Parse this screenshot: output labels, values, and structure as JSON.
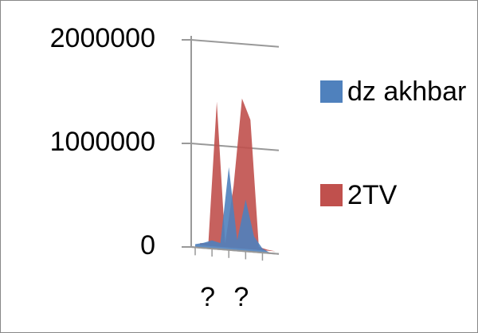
{
  "chart_data": {
    "type": "area3d",
    "categories": [
      null,
      "?",
      null,
      null,
      null,
      "?",
      null,
      null,
      null,
      null
    ],
    "series": [
      {
        "name": "dz akhbar",
        "color": "#4f81bd",
        "values": [
          30000,
          50000,
          80000,
          60000,
          800000,
          100000,
          500000,
          150000,
          40000,
          0
        ]
      },
      {
        "name": "2TV",
        "color": "#c0504d",
        "values": [
          20000,
          30000,
          1400000,
          40000,
          600000,
          1450000,
          1250000,
          30000,
          10000,
          0
        ]
      }
    ],
    "ylim": [
      0,
      2000000
    ],
    "yticks": [
      0,
      1000000,
      2000000
    ],
    "grid": true
  }
}
